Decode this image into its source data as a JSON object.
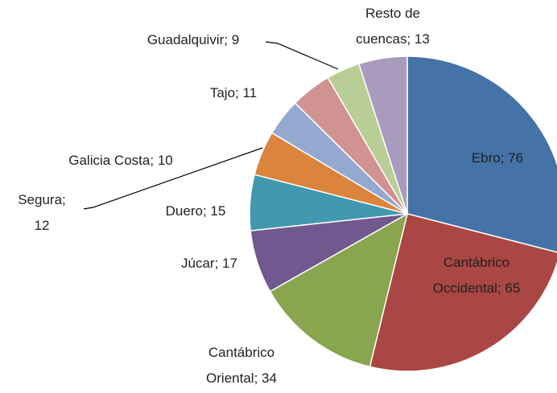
{
  "chart_data": {
    "type": "pie",
    "categories": [
      "Ebro",
      "Cantábrico Occidental",
      "Cantábrico Oriental",
      "Júcar",
      "Duero",
      "Segura",
      "Galicia Costa",
      "Tajo",
      "Guadalquivir",
      "Resto de cuencas"
    ],
    "values": [
      76,
      65,
      34,
      17,
      15,
      12,
      10,
      11,
      9,
      13
    ],
    "colors": [
      "#4572a7",
      "#aa4643",
      "#89a54e",
      "#71588f",
      "#4198af",
      "#db843d",
      "#93a9cf",
      "#d19392",
      "#b9cd96",
      "#a99bbd"
    ]
  }
}
